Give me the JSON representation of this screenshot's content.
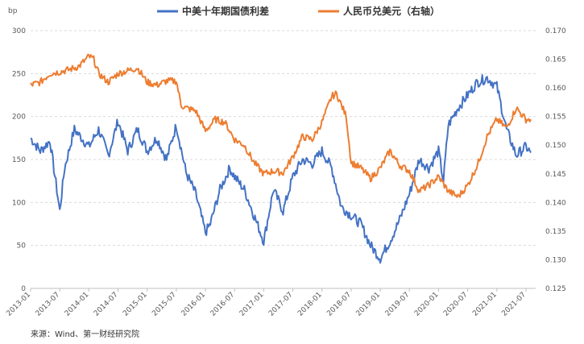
{
  "chart_data": {
    "type": "line",
    "left_unit": "bp",
    "y_left": {
      "range": [
        0,
        300
      ],
      "ticks": [
        "0",
        "50",
        "100",
        "150",
        "200",
        "250",
        "300"
      ]
    },
    "y_right": {
      "range": [
        0.125,
        0.17
      ],
      "ticks": [
        "0.125",
        "0.130",
        "0.135",
        "0.140",
        "0.145",
        "0.150",
        "0.155",
        "0.160",
        "0.165",
        "0.170"
      ]
    },
    "x_ticks": [
      "2013-01",
      "2013-07",
      "2014-01",
      "2014-07",
      "2015-01",
      "2015-07",
      "2016-01",
      "2016-07",
      "2017-01",
      "2017-07",
      "2018-01",
      "2018-07",
      "2019-01",
      "2019-07",
      "2020-01",
      "2020-07",
      "2021-01",
      "2021-07"
    ],
    "grid": "horizontal dashed",
    "legend_position": "top",
    "series": [
      {
        "name": "中美十年期国债利差",
        "axis": "left",
        "color": "#4472C4",
        "x": [
          "2013-01",
          "2013-03",
          "2013-05",
          "2013-07",
          "2013-08",
          "2013-10",
          "2014-01",
          "2014-03",
          "2014-05",
          "2014-07",
          "2014-09",
          "2014-11",
          "2015-01",
          "2015-03",
          "2015-05",
          "2015-07",
          "2015-09",
          "2015-11",
          "2016-01",
          "2016-02",
          "2016-04",
          "2016-06",
          "2016-07",
          "2016-09",
          "2016-11",
          "2017-01",
          "2017-03",
          "2017-05",
          "2017-07",
          "2017-09",
          "2017-11",
          "2018-01",
          "2018-03",
          "2018-05",
          "2018-07",
          "2018-09",
          "2018-11",
          "2019-01",
          "2019-03",
          "2019-05",
          "2019-07",
          "2019-09",
          "2019-11",
          "2020-01",
          "2020-02",
          "2020-03",
          "2020-05",
          "2020-07",
          "2020-09",
          "2020-11",
          "2021-01",
          "2021-03",
          "2021-05",
          "2021-07",
          "2021-08"
        ],
        "values": [
          175,
          160,
          172,
          90,
          140,
          185,
          165,
          185,
          155,
          195,
          160,
          185,
          160,
          175,
          150,
          190,
          135,
          110,
          65,
          75,
          115,
          140,
          130,
          115,
          85,
          55,
          115,
          90,
          130,
          150,
          145,
          160,
          140,
          95,
          85,
          75,
          50,
          35,
          55,
          80,
          110,
          150,
          140,
          160,
          125,
          190,
          210,
          225,
          240,
          245,
          235,
          185,
          155,
          165,
          158
        ]
      },
      {
        "name": "人民币兑美元（右轴）",
        "axis": "right",
        "color": "#ED7D31",
        "x": [
          "2013-01",
          "2013-03",
          "2013-05",
          "2013-07",
          "2013-09",
          "2013-11",
          "2014-01",
          "2014-02",
          "2014-03",
          "2014-05",
          "2014-07",
          "2014-09",
          "2014-11",
          "2015-01",
          "2015-03",
          "2015-05",
          "2015-07",
          "2015-08",
          "2015-09",
          "2015-11",
          "2016-01",
          "2016-03",
          "2016-05",
          "2016-07",
          "2016-09",
          "2016-11",
          "2017-01",
          "2017-03",
          "2017-05",
          "2017-07",
          "2017-09",
          "2017-11",
          "2018-01",
          "2018-03",
          "2018-04",
          "2018-06",
          "2018-07",
          "2018-09",
          "2018-11",
          "2019-01",
          "2019-03",
          "2019-05",
          "2019-07",
          "2019-09",
          "2019-11",
          "2020-01",
          "2020-03",
          "2020-05",
          "2020-07",
          "2020-09",
          "2020-11",
          "2021-01",
          "2021-03",
          "2021-05",
          "2021-07",
          "2021-08"
        ],
        "values": [
          0.1605,
          0.161,
          0.1625,
          0.1628,
          0.1632,
          0.1638,
          0.1655,
          0.165,
          0.1625,
          0.161,
          0.1625,
          0.163,
          0.1635,
          0.161,
          0.1605,
          0.1612,
          0.1612,
          0.157,
          0.1565,
          0.156,
          0.1525,
          0.1545,
          0.154,
          0.151,
          0.15,
          0.147,
          0.145,
          0.1455,
          0.1452,
          0.148,
          0.1515,
          0.151,
          0.154,
          0.1585,
          0.159,
          0.155,
          0.147,
          0.146,
          0.1442,
          0.146,
          0.149,
          0.1465,
          0.1455,
          0.142,
          0.143,
          0.1445,
          0.142,
          0.141,
          0.143,
          0.1465,
          0.1515,
          0.1545,
          0.153,
          0.1565,
          0.1545,
          0.1545
        ]
      }
    ]
  },
  "source_text": "来源：Wind、第一财经研究院"
}
